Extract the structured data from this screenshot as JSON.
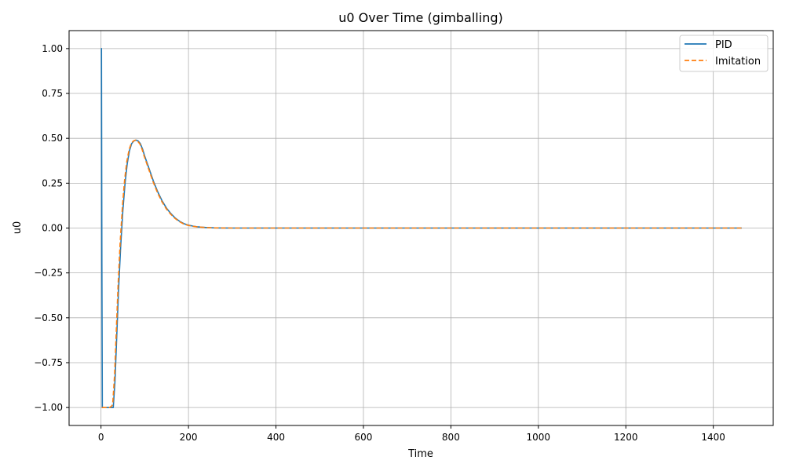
{
  "chart_data": {
    "type": "line",
    "title": "u0 Over Time (gimballing)",
    "xlabel": "Time",
    "ylabel": "u0",
    "xlim": [
      -73,
      1537
    ],
    "ylim": [
      -1.1,
      1.1
    ],
    "xticks": [
      0,
      200,
      400,
      600,
      800,
      1000,
      1200,
      1400
    ],
    "yticks": [
      -1.0,
      -0.75,
      -0.5,
      -0.25,
      0.0,
      0.25,
      0.5,
      0.75,
      1.0
    ],
    "xtick_labels": [
      "0",
      "200",
      "400",
      "600",
      "800",
      "1000",
      "1200",
      "1400"
    ],
    "ytick_labels": [
      "−1.00",
      "−0.75",
      "−0.50",
      "−0.25",
      "0.00",
      "0.25",
      "0.50",
      "0.75",
      "1.00"
    ],
    "grid": true,
    "legend_position": "top-right",
    "series": [
      {
        "name": "PID",
        "color": "#1f77b4",
        "style": "solid",
        "x": [
          0,
          1,
          2,
          3,
          10,
          20,
          25,
          28,
          32,
          36,
          40,
          45,
          50,
          55,
          60,
          65,
          70,
          75,
          80,
          85,
          90,
          95,
          100,
          110,
          120,
          130,
          140,
          150,
          160,
          170,
          180,
          190,
          200,
          210,
          220,
          230,
          240,
          250,
          260,
          280,
          300,
          350,
          400,
          600,
          800,
          1000,
          1200,
          1400,
          1465
        ],
        "y": [
          1.0,
          1.0,
          -0.2,
          -1.0,
          -1.0,
          -1.0,
          -1.0,
          -1.0,
          -0.85,
          -0.6,
          -0.35,
          -0.1,
          0.1,
          0.25,
          0.36,
          0.43,
          0.47,
          0.485,
          0.49,
          0.485,
          0.47,
          0.44,
          0.4,
          0.33,
          0.26,
          0.2,
          0.15,
          0.11,
          0.08,
          0.055,
          0.037,
          0.024,
          0.016,
          0.011,
          0.007,
          0.005,
          0.003,
          0.002,
          0.001,
          0.0005,
          0.0,
          0.0,
          0.0,
          0.0,
          0.0,
          0.0,
          0.0,
          0.0,
          0.0
        ]
      },
      {
        "name": "Imitation",
        "color": "#ff7f0e",
        "style": "dashed",
        "x": [
          2,
          3,
          10,
          20,
          25,
          27,
          31,
          35,
          39,
          44,
          49,
          54,
          59,
          64,
          69,
          74,
          79,
          84,
          89,
          94,
          99,
          109,
          119,
          129,
          139,
          149,
          159,
          169,
          179,
          189,
          199,
          209,
          219,
          229,
          239,
          249,
          259,
          279,
          299,
          349,
          400,
          600,
          800,
          1000,
          1200,
          1400,
          1465
        ],
        "y": [
          -1.0,
          -1.0,
          -1.0,
          -1.0,
          -0.99,
          -0.97,
          -0.82,
          -0.57,
          -0.32,
          -0.07,
          0.12,
          0.27,
          0.37,
          0.435,
          0.47,
          0.485,
          0.49,
          0.483,
          0.468,
          0.438,
          0.398,
          0.328,
          0.258,
          0.198,
          0.148,
          0.108,
          0.078,
          0.054,
          0.036,
          0.023,
          0.015,
          0.01,
          0.007,
          0.005,
          0.003,
          0.002,
          0.001,
          0.0005,
          0.0,
          0.0,
          0.0,
          0.0,
          0.0,
          0.0,
          0.0,
          0.0,
          0.0
        ]
      }
    ]
  }
}
